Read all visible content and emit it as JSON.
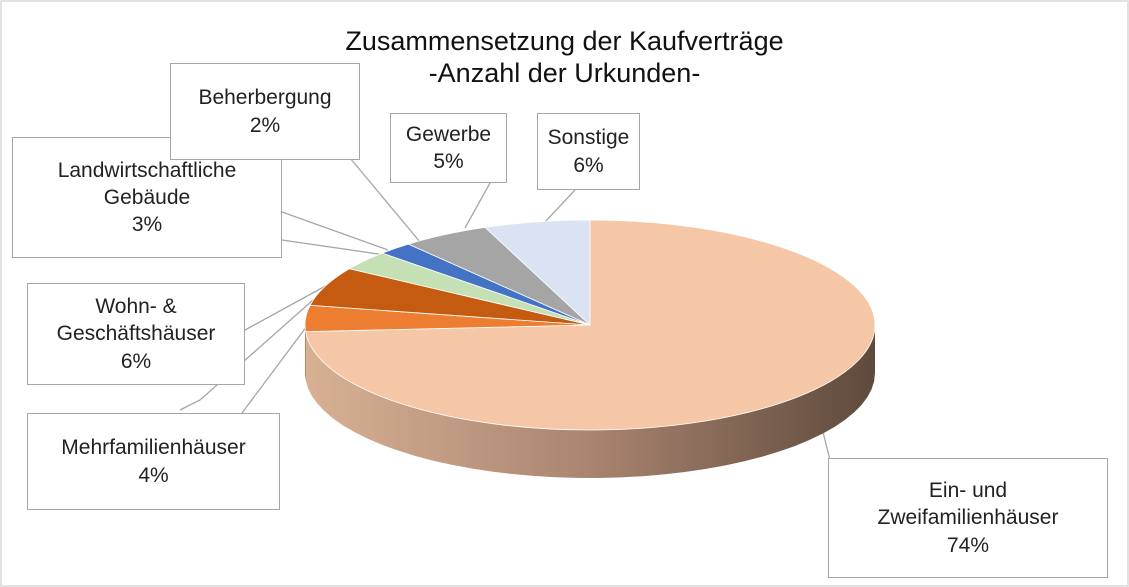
{
  "chart_data": {
    "type": "pie",
    "title": "Zusammensetzung der Kaufverträge",
    "subtitle": "-Anzahl der Urkunden-",
    "categories": [
      "Ein- und Zweifamilienhäuser",
      "Mehrfamilienhäuser",
      "Wohn- & Geschäftshäuser",
      "Landwirtschaftliche Gebäude",
      "Beherbergung",
      "Gewerbe",
      "Sonstige"
    ],
    "values": [
      74,
      4,
      6,
      3,
      2,
      5,
      6
    ],
    "value_labels": [
      "74%",
      "4%",
      "6%",
      "3%",
      "2%",
      "5%",
      "6%"
    ],
    "colors": [
      "#f5c7a6",
      "#ed7d31",
      "#c55a11",
      "#c5e0b4",
      "#4472c4",
      "#a5a5a5",
      "#dae3f3"
    ]
  }
}
